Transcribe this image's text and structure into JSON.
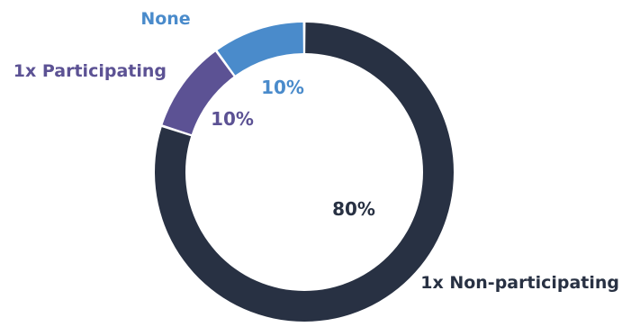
{
  "chart_data": {
    "type": "pie",
    "variant": "donut",
    "title": "",
    "legend": "none",
    "slices": [
      {
        "label": "1x Non-participating",
        "value": 80,
        "value_label": "80%",
        "color": "#283143",
        "label_color": "#283143"
      },
      {
        "label": "1x Participating",
        "value": 10,
        "value_label": "10%",
        "color": "#5c5294",
        "label_color": "#5c5294"
      },
      {
        "label": "None",
        "value": 10,
        "value_label": "10%",
        "color": "#4a8bcb",
        "label_color": "#4a8bcb"
      }
    ]
  }
}
